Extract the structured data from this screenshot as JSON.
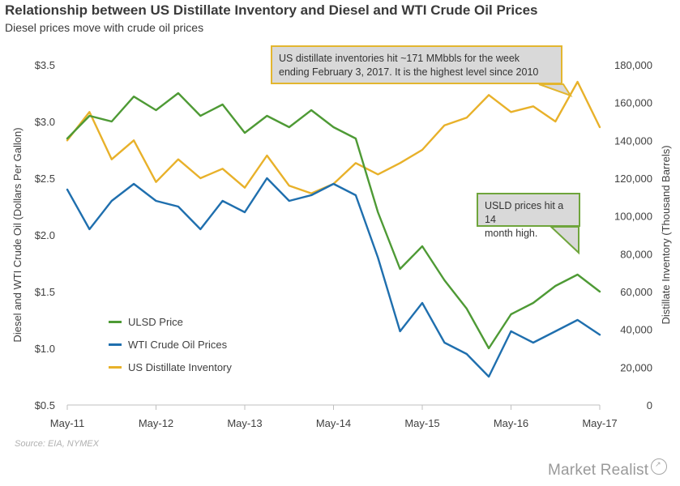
{
  "chart_data": {
    "type": "line",
    "title": "Relationship between US Distillate Inventory and Diesel and WTI Crude Oil Prices",
    "subtitle": "Diesel prices move with crude oil prices",
    "x_ticks": [
      "May-11",
      "May-12",
      "May-13",
      "May-14",
      "May-15",
      "May-16",
      "May-17"
    ],
    "y_left": {
      "label": "Diesel and WTI Crude Oil (Dollars Per Gallon)",
      "ticks": [
        "$0.5",
        "$1.0",
        "$1.5",
        "$2.0",
        "$2.5",
        "$3.0",
        "$3.5"
      ],
      "min": 0.5,
      "max": 3.5
    },
    "y_right": {
      "label": "Distillate Inventory (Thousand Barrels)",
      "ticks": [
        "0",
        "20,000",
        "40,000",
        "60,000",
        "80,000",
        "100,000",
        "120,000",
        "140,000",
        "160,000",
        "180,000"
      ],
      "min": 0,
      "max": 180000
    },
    "legend_placement": "bottom-left",
    "grid": false,
    "series": [
      {
        "name": "ULSD Price",
        "color": "#4e9a35",
        "axis": "left",
        "x": [
          "May-11",
          "Aug-11",
          "Nov-11",
          "Feb-12",
          "May-12",
          "Aug-12",
          "Nov-12",
          "Feb-13",
          "May-13",
          "Aug-13",
          "Nov-13",
          "Feb-14",
          "May-14",
          "Aug-14",
          "Nov-14",
          "Feb-15",
          "May-15",
          "Aug-15",
          "Nov-15",
          "Feb-16",
          "May-16",
          "Aug-16",
          "Nov-16",
          "Feb-17",
          "May-17"
        ],
        "values": [
          2.85,
          3.05,
          3.0,
          3.22,
          3.1,
          3.25,
          3.05,
          3.15,
          2.9,
          3.05,
          2.95,
          3.1,
          2.95,
          2.85,
          2.2,
          1.7,
          1.9,
          1.6,
          1.35,
          1.0,
          1.3,
          1.4,
          1.55,
          1.65,
          1.5
        ]
      },
      {
        "name": "WTI Crude Oil Prices",
        "color": "#1f6fae",
        "axis": "left",
        "x": [
          "May-11",
          "Aug-11",
          "Nov-11",
          "Feb-12",
          "May-12",
          "Aug-12",
          "Nov-12",
          "Feb-13",
          "May-13",
          "Aug-13",
          "Nov-13",
          "Feb-14",
          "May-14",
          "Aug-14",
          "Nov-14",
          "Feb-15",
          "May-15",
          "Aug-15",
          "Nov-15",
          "Feb-16",
          "May-16",
          "Aug-16",
          "Nov-16",
          "Feb-17",
          "May-17"
        ],
        "values": [
          2.4,
          2.05,
          2.3,
          2.45,
          2.3,
          2.25,
          2.05,
          2.3,
          2.2,
          2.5,
          2.3,
          2.35,
          2.45,
          2.35,
          1.8,
          1.15,
          1.4,
          1.05,
          0.95,
          0.75,
          1.15,
          1.05,
          1.15,
          1.25,
          1.12
        ]
      },
      {
        "name": "US Distillate Inventory",
        "color": "#e8b12a",
        "axis": "right",
        "x": [
          "May-11",
          "Aug-11",
          "Nov-11",
          "Feb-12",
          "May-12",
          "Aug-12",
          "Nov-12",
          "Feb-13",
          "May-13",
          "Aug-13",
          "Nov-13",
          "Feb-14",
          "May-14",
          "Aug-14",
          "Nov-14",
          "Feb-15",
          "May-15",
          "Aug-15",
          "Nov-15",
          "Feb-16",
          "May-16",
          "Aug-16",
          "Nov-16",
          "Feb-17",
          "May-17"
        ],
        "values": [
          140000,
          155000,
          130000,
          140000,
          118000,
          130000,
          120000,
          125000,
          115000,
          132000,
          116000,
          112000,
          117000,
          128000,
          122000,
          128000,
          135000,
          148000,
          152000,
          164000,
          155000,
          158000,
          150000,
          171000,
          147000
        ]
      }
    ]
  },
  "annotations": [
    {
      "text_line1": "US distillate inventories  hit ~171 MMbbls for  the week",
      "text_line2": "ending  February 3, 2017. It is the highest level since 2010",
      "color": "#e3b62f"
    },
    {
      "text_line1": "USLD prices hit a 14",
      "text_line2": "month high.",
      "color": "#6fa53c"
    }
  ],
  "source": "Source: EIA, NYMEX",
  "brand": "Market Realist"
}
